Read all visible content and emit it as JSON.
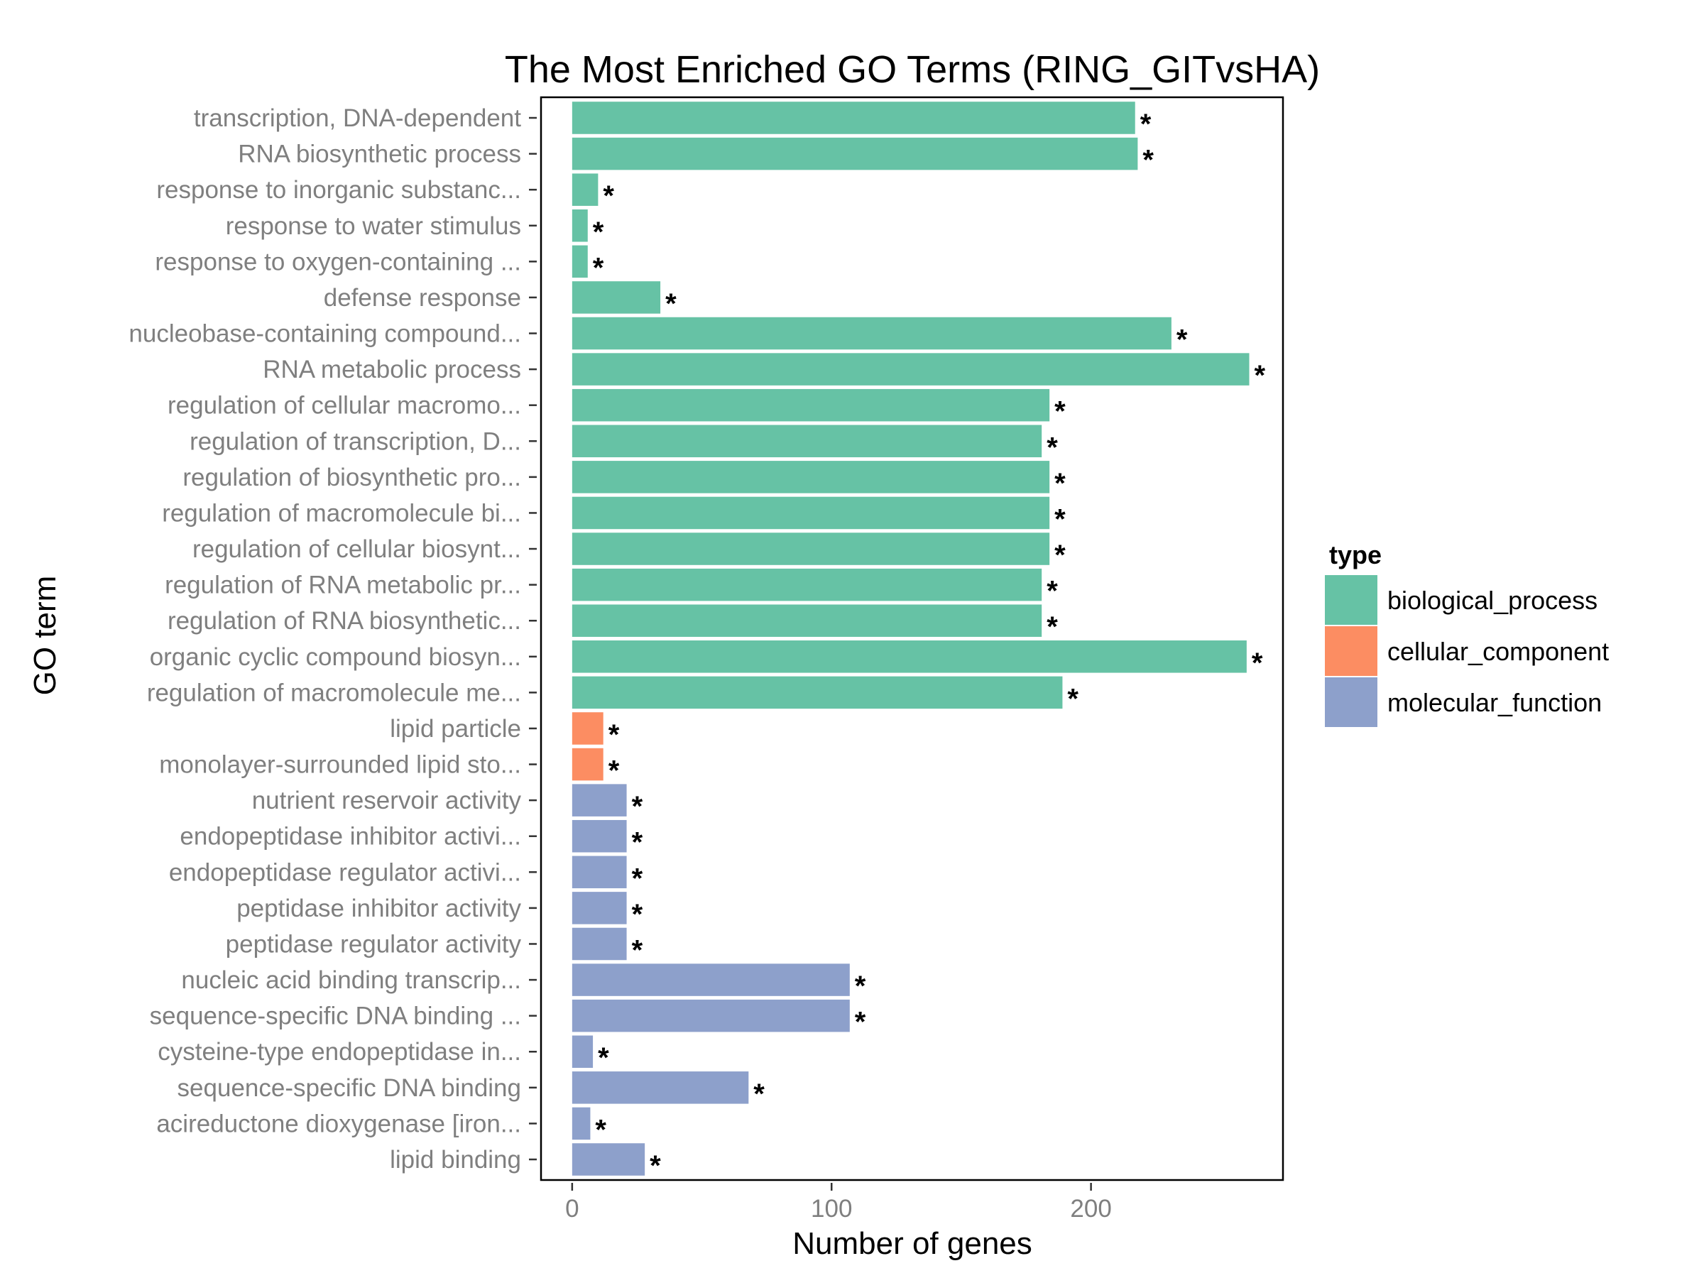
{
  "chart_data": {
    "type": "bar",
    "orientation": "horizontal",
    "title": "The Most Enriched GO Terms (RING_GITvsHA)",
    "xlabel": "Number of genes",
    "ylabel": "GO term",
    "xlim": [
      -12,
      274
    ],
    "xticks": [
      0,
      100,
      200
    ],
    "grid": false,
    "legend": {
      "title": "type",
      "placement": "right",
      "entries": [
        {
          "name": "biological_process",
          "color": "#66c2a5"
        },
        {
          "name": "cellular_component",
          "color": "#fc8d62"
        },
        {
          "name": "molecular_function",
          "color": "#8da0cb"
        }
      ]
    },
    "significance_marker": "*",
    "categories": [
      "transcription, DNA-dependent",
      "RNA biosynthetic process",
      "response to inorganic substanc...",
      "response to water stimulus",
      "response to oxygen-containing ...",
      "defense response",
      "nucleobase-containing compound...",
      "RNA metabolic process",
      "regulation of cellular macromo...",
      "regulation of transcription, D...",
      "regulation of biosynthetic pro...",
      "regulation of macromolecule bi...",
      "regulation of cellular biosynt...",
      "regulation of RNA metabolic pr...",
      "regulation of RNA biosynthetic...",
      "organic cyclic compound biosyn...",
      "regulation of macromolecule me...",
      "lipid particle",
      "monolayer-surrounded lipid sto...",
      "nutrient reservoir activity",
      "endopeptidase inhibitor activi...",
      "endopeptidase regulator activi...",
      "peptidase inhibitor activity",
      "peptidase regulator activity",
      "nucleic acid binding transcrip...",
      "sequence-specific DNA binding ...",
      "cysteine-type endopeptidase in...",
      "sequence-specific DNA binding",
      "acireductone dioxygenase [iron...",
      "lipid binding"
    ],
    "values": [
      217,
      218,
      10,
      6,
      6,
      34,
      231,
      261,
      184,
      181,
      184,
      184,
      184,
      181,
      181,
      260,
      189,
      12,
      12,
      21,
      21,
      21,
      21,
      21,
      107,
      107,
      8,
      68,
      7,
      28
    ],
    "types": [
      "biological_process",
      "biological_process",
      "biological_process",
      "biological_process",
      "biological_process",
      "biological_process",
      "biological_process",
      "biological_process",
      "biological_process",
      "biological_process",
      "biological_process",
      "biological_process",
      "biological_process",
      "biological_process",
      "biological_process",
      "biological_process",
      "biological_process",
      "cellular_component",
      "cellular_component",
      "molecular_function",
      "molecular_function",
      "molecular_function",
      "molecular_function",
      "molecular_function",
      "molecular_function",
      "molecular_function",
      "molecular_function",
      "molecular_function",
      "molecular_function",
      "molecular_function"
    ]
  }
}
